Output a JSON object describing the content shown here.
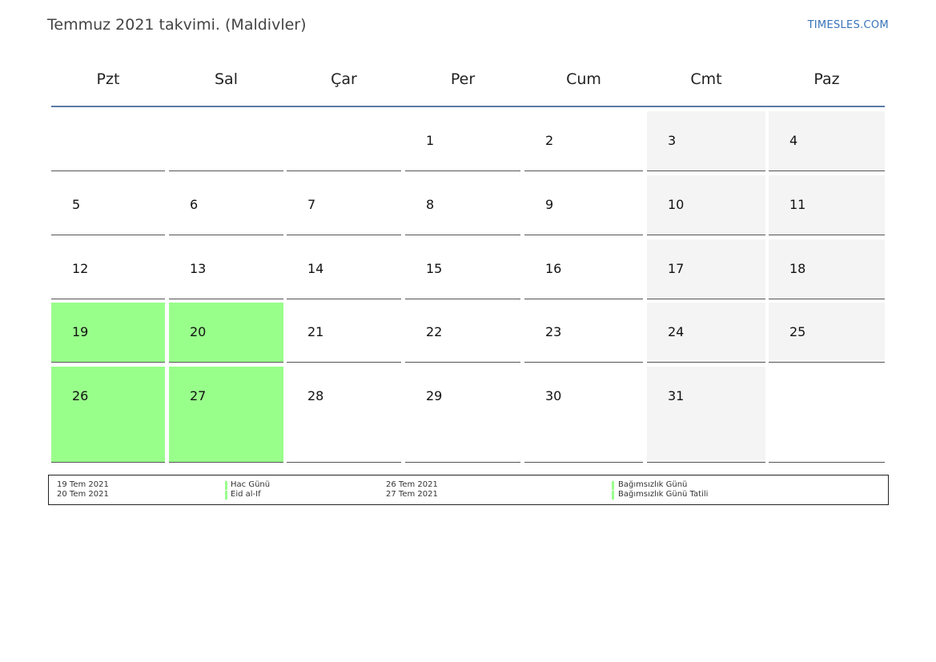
{
  "header": {
    "title": "Temmuz 2021 takvimi. (Maldivler)",
    "site": "TIMESLES.COM"
  },
  "weekdays": [
    "Pzt",
    "Sal",
    "Çar",
    "Per",
    "Cum",
    "Cmt",
    "Paz"
  ],
  "colors": {
    "holiday": "#99ff8b",
    "weekend": "#f4f4f4",
    "header_rule": "#5a7ba4",
    "link": "#3873b8"
  },
  "weeks": [
    [
      {
        "day": "",
        "type": "empty"
      },
      {
        "day": "",
        "type": "empty"
      },
      {
        "day": "",
        "type": "empty"
      },
      {
        "day": "1",
        "type": "normal"
      },
      {
        "day": "2",
        "type": "normal"
      },
      {
        "day": "3",
        "type": "weekend"
      },
      {
        "day": "4",
        "type": "weekend"
      }
    ],
    [
      {
        "day": "5",
        "type": "normal"
      },
      {
        "day": "6",
        "type": "normal"
      },
      {
        "day": "7",
        "type": "normal"
      },
      {
        "day": "8",
        "type": "normal"
      },
      {
        "day": "9",
        "type": "normal"
      },
      {
        "day": "10",
        "type": "weekend"
      },
      {
        "day": "11",
        "type": "weekend"
      }
    ],
    [
      {
        "day": "12",
        "type": "normal"
      },
      {
        "day": "13",
        "type": "normal"
      },
      {
        "day": "14",
        "type": "normal"
      },
      {
        "day": "15",
        "type": "normal"
      },
      {
        "day": "16",
        "type": "normal"
      },
      {
        "day": "17",
        "type": "weekend"
      },
      {
        "day": "18",
        "type": "weekend"
      }
    ],
    [
      {
        "day": "19",
        "type": "holiday"
      },
      {
        "day": "20",
        "type": "holiday"
      },
      {
        "day": "21",
        "type": "normal"
      },
      {
        "day": "22",
        "type": "normal"
      },
      {
        "day": "23",
        "type": "normal"
      },
      {
        "day": "24",
        "type": "weekend"
      },
      {
        "day": "25",
        "type": "weekend"
      }
    ],
    [
      {
        "day": "26",
        "type": "holiday"
      },
      {
        "day": "27",
        "type": "holiday"
      },
      {
        "day": "28",
        "type": "normal"
      },
      {
        "day": "29",
        "type": "normal"
      },
      {
        "day": "30",
        "type": "normal"
      },
      {
        "day": "31",
        "type": "weekend"
      },
      {
        "day": "",
        "type": "empty"
      }
    ]
  ],
  "legend": {
    "left": [
      {
        "date": "19 Tem 2021",
        "name": "Hac Günü"
      },
      {
        "date": "20 Tem 2021",
        "name": "Eid al-If"
      }
    ],
    "right": [
      {
        "date": "26 Tem 2021",
        "name": "Bağımsızlık Günü"
      },
      {
        "date": "27 Tem 2021",
        "name": "Bağımsızlık Günü Tatili"
      }
    ]
  }
}
